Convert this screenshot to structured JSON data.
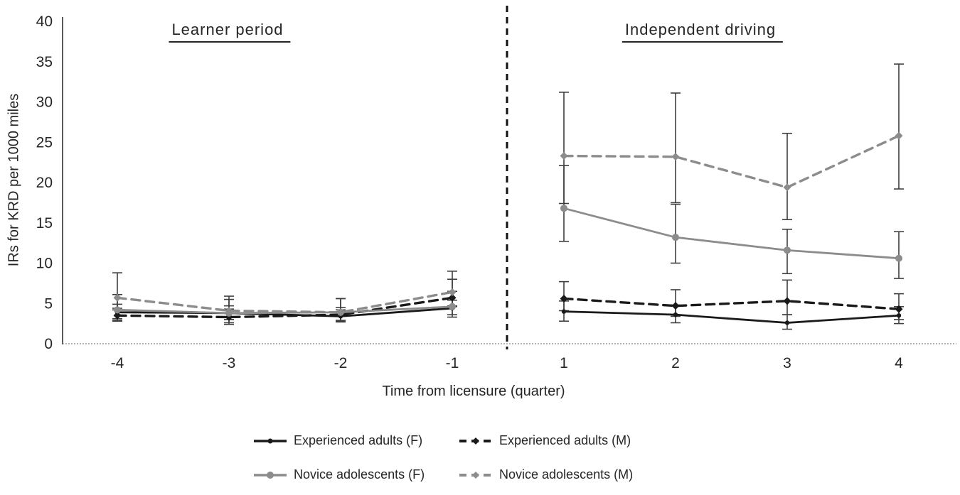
{
  "chart_data": {
    "type": "line",
    "title": "",
    "xlabel": "Time from licensure (quarter)",
    "ylabel": "IRs for KRD per 1000 miles",
    "ylim": [
      0,
      40
    ],
    "ytick_step": 5,
    "grid": false,
    "legend_position": "bottom",
    "categories": [
      "-4",
      "-3",
      "-2",
      "-1",
      "1",
      "2",
      "3",
      "4"
    ],
    "panel_labels": {
      "left": "Learner period",
      "right": "Independent driving"
    },
    "divider_after_index": 3,
    "error_bar_color": "#3f3f3f",
    "series": [
      {
        "name": "Experienced adults (F)",
        "color": "#1a1a1a",
        "dash": "solid",
        "marker": "dot",
        "values": [
          3.9,
          3.8,
          3.4,
          4.4,
          4.0,
          3.6,
          2.6,
          3.5
        ],
        "ci_low": [
          3.1,
          3.0,
          2.8,
          3.6,
          2.8,
          2.6,
          1.8,
          2.5
        ],
        "ci_high": [
          4.9,
          4.7,
          4.2,
          5.4,
          5.3,
          4.8,
          3.6,
          4.6
        ]
      },
      {
        "name": "Experienced adults (M)",
        "color": "#1a1a1a",
        "dash": "dashed",
        "marker": "diamond",
        "values": [
          3.5,
          3.3,
          3.6,
          5.7,
          5.6,
          4.7,
          5.3,
          4.3
        ],
        "ci_low": [
          2.8,
          2.4,
          2.9,
          4.7,
          4.1,
          3.4,
          3.6,
          3.0
        ],
        "ci_high": [
          4.4,
          4.3,
          4.5,
          8.0,
          7.7,
          6.7,
          7.9,
          6.2
        ]
      },
      {
        "name": "Novice adolescents (F)",
        "color": "#8c8c8c",
        "dash": "solid",
        "marker": "circle",
        "values": [
          4.2,
          3.8,
          3.9,
          4.6,
          16.8,
          13.2,
          11.6,
          10.6
        ],
        "ci_low": [
          2.9,
          2.6,
          2.7,
          3.3,
          12.7,
          10.0,
          8.7,
          8.1
        ],
        "ci_high": [
          6.1,
          5.5,
          5.6,
          6.5,
          22.1,
          17.3,
          14.2,
          13.9
        ]
      },
      {
        "name": "Novice adolescents (M)",
        "color": "#8c8c8c",
        "dash": "dashed",
        "marker": "diamond",
        "values": [
          5.7,
          4.1,
          3.9,
          6.4,
          23.3,
          23.2,
          19.4,
          25.8
        ],
        "ci_low": [
          4.2,
          3.0,
          2.8,
          4.6,
          17.4,
          17.5,
          15.4,
          19.2
        ],
        "ci_high": [
          8.8,
          5.9,
          5.6,
          9.0,
          31.2,
          31.1,
          26.1,
          34.7
        ]
      }
    ]
  }
}
